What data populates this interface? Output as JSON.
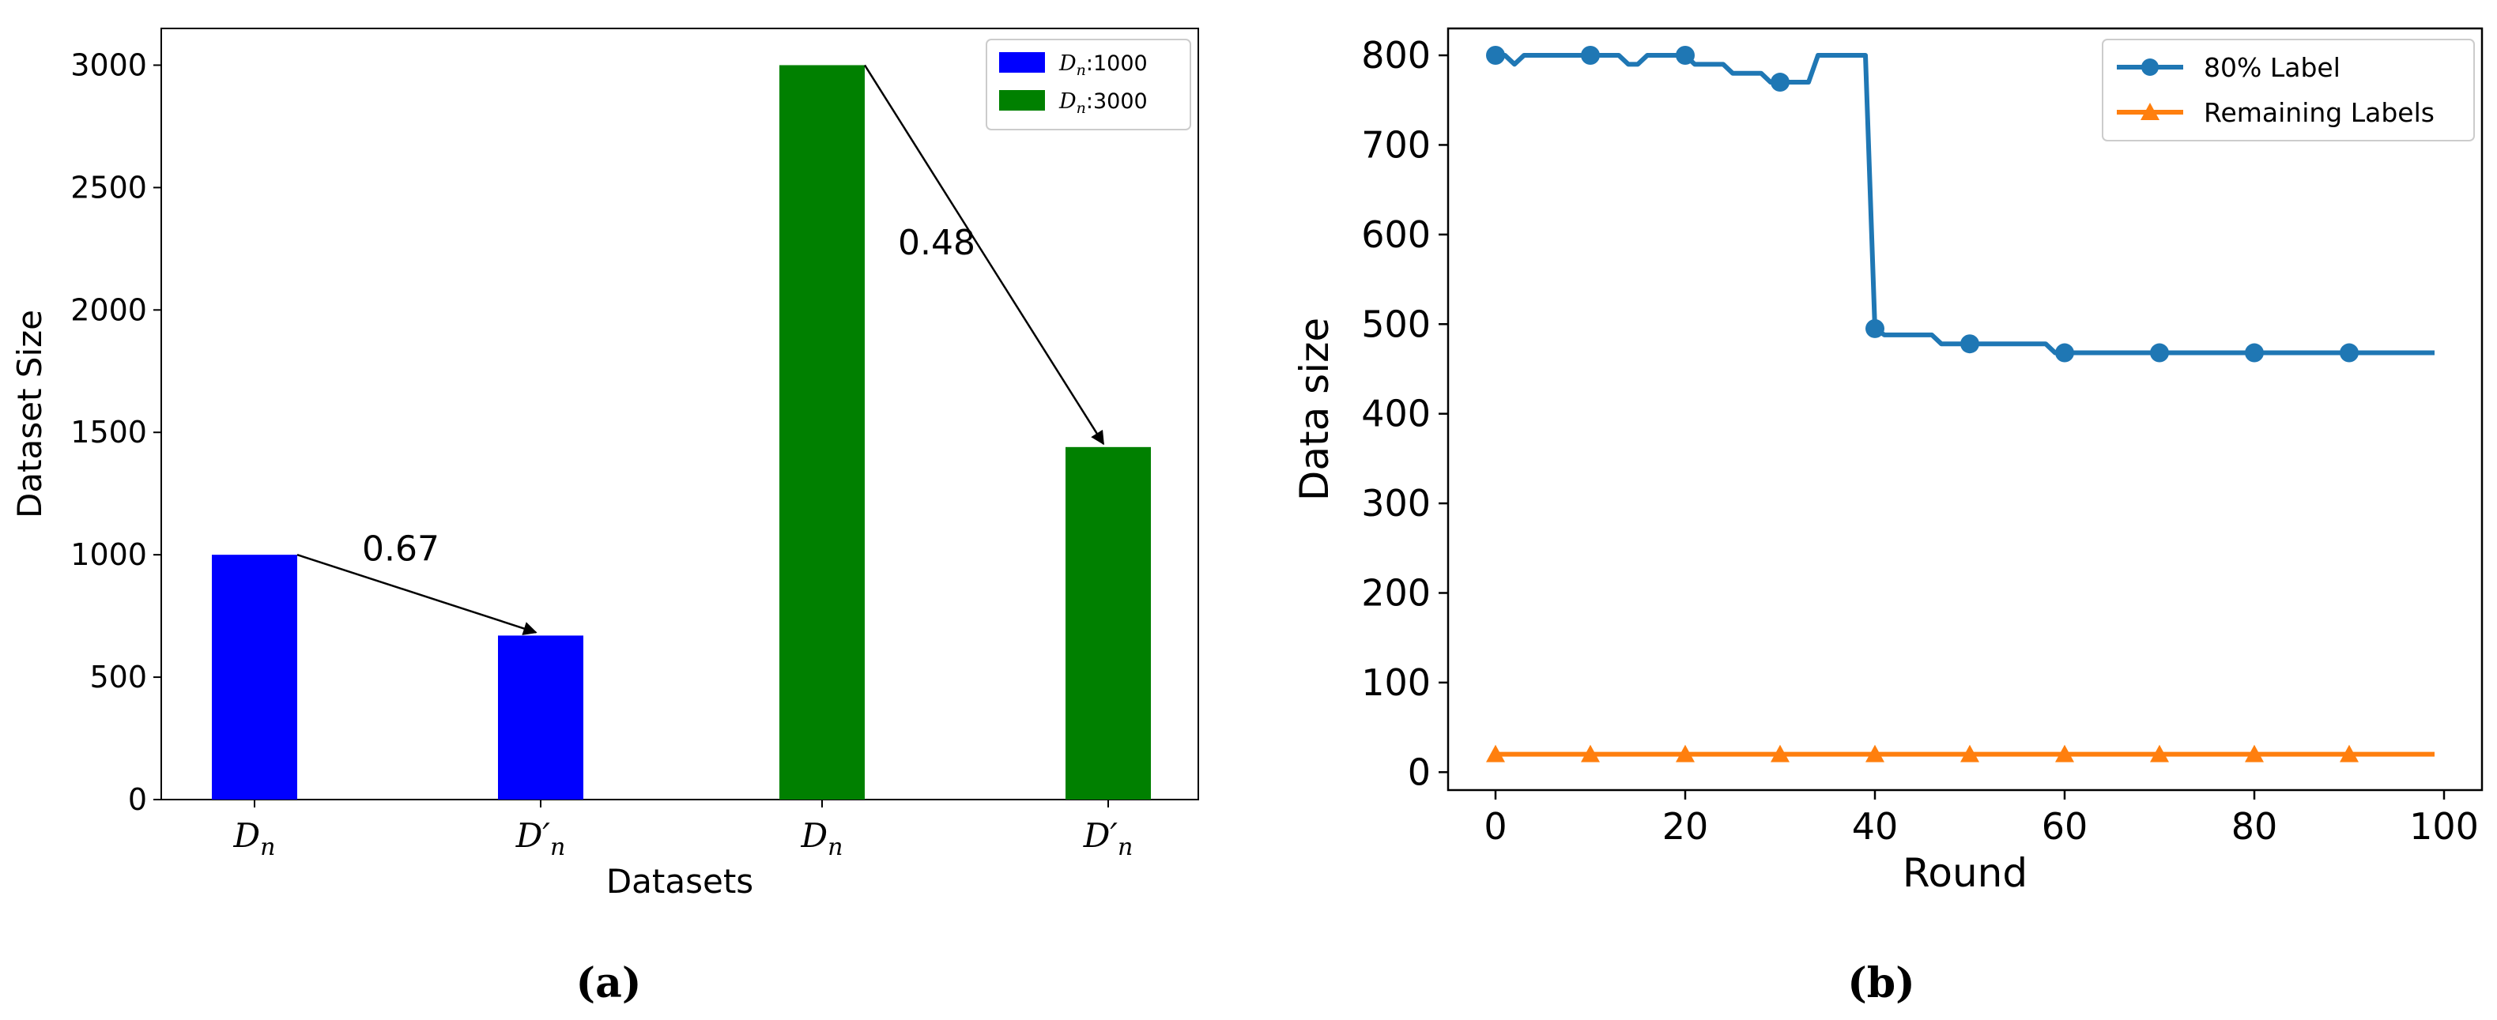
{
  "chart_data": [
    {
      "type": "bar",
      "panel": "(a)",
      "xlabel": "Datasets",
      "ylabel": "Dataset Size",
      "ylim": [
        0,
        3150
      ],
      "yticks": [
        0,
        500,
        1000,
        1500,
        2000,
        2500,
        3000
      ],
      "categories": [
        "Dn",
        "D'n",
        "Dn",
        "D'n"
      ],
      "values": [
        1000,
        670,
        3000,
        1440
      ],
      "bar_colors": [
        "#0000ff",
        "#0000ff",
        "#008000",
        "#008000"
      ],
      "legend": [
        {
          "label": "Dn:1000",
          "color": "#0000ff"
        },
        {
          "label": "Dn:3000",
          "color": "#008000"
        }
      ],
      "legend_position": "top-right",
      "annotations": [
        {
          "text": "0.67",
          "from": 0,
          "to": 1
        },
        {
          "text": "0.48",
          "from": 2,
          "to": 3
        }
      ],
      "grid": false
    },
    {
      "type": "line",
      "panel": "(b)",
      "xlabel": "Round",
      "ylabel": "Data size",
      "xlim": [
        -5,
        104
      ],
      "ylim": [
        -20,
        830
      ],
      "xticks": [
        0,
        20,
        40,
        60,
        80,
        100
      ],
      "yticks": [
        0,
        100,
        200,
        300,
        400,
        500,
        600,
        700,
        800
      ],
      "legend_position": "top-right",
      "grid": false,
      "series": [
        {
          "name": "80% Label",
          "color": "#1f77b4",
          "marker": "circle",
          "markevery": 10,
          "x": [
            0,
            1,
            2,
            3,
            4,
            5,
            6,
            7,
            8,
            9,
            10,
            11,
            12,
            13,
            14,
            15,
            16,
            17,
            18,
            19,
            20,
            21,
            22,
            23,
            24,
            25,
            26,
            27,
            28,
            29,
            30,
            31,
            32,
            33,
            34,
            35,
            36,
            37,
            38,
            39,
            40,
            41,
            42,
            43,
            44,
            45,
            46,
            47,
            48,
            49,
            50,
            51,
            52,
            53,
            54,
            55,
            56,
            57,
            58,
            59,
            60,
            61,
            62,
            63,
            64,
            65,
            66,
            67,
            68,
            69,
            70,
            71,
            72,
            73,
            74,
            75,
            76,
            77,
            78,
            79,
            80,
            81,
            82,
            83,
            84,
            85,
            86,
            87,
            88,
            89,
            90,
            91,
            92,
            93,
            94,
            95,
            96,
            97,
            98,
            99
          ],
          "values": [
            800,
            800,
            790,
            800,
            800,
            800,
            800,
            800,
            800,
            800,
            800,
            800,
            800,
            800,
            790,
            790,
            800,
            800,
            800,
            800,
            800,
            790,
            790,
            790,
            790,
            780,
            780,
            780,
            780,
            770,
            770,
            770,
            770,
            770,
            800,
            800,
            800,
            800,
            800,
            800,
            495,
            488,
            488,
            488,
            488,
            488,
            488,
            478,
            478,
            478,
            478,
            478,
            478,
            478,
            478,
            478,
            478,
            478,
            478,
            468,
            468,
            468,
            468,
            468,
            468,
            468,
            468,
            468,
            468,
            468,
            468,
            468,
            468,
            468,
            468,
            468,
            468,
            468,
            468,
            468,
            468,
            468,
            468,
            468,
            468,
            468,
            468,
            468,
            468,
            468,
            468,
            468,
            468,
            468,
            468,
            468,
            468,
            468,
            468,
            468
          ]
        },
        {
          "name": "Remaining Labels",
          "color": "#ff7f0e",
          "marker": "triangle",
          "markevery": 10,
          "x": [
            0,
            99
          ],
          "values": [
            20,
            20
          ]
        }
      ]
    }
  ],
  "captions": {
    "a": "(a)",
    "b": "(b)"
  },
  "labels": {
    "dn": "D",
    "dn_sub": "n",
    "prime": "′",
    "legend1_value": ":1000",
    "legend2_value": ":3000"
  }
}
